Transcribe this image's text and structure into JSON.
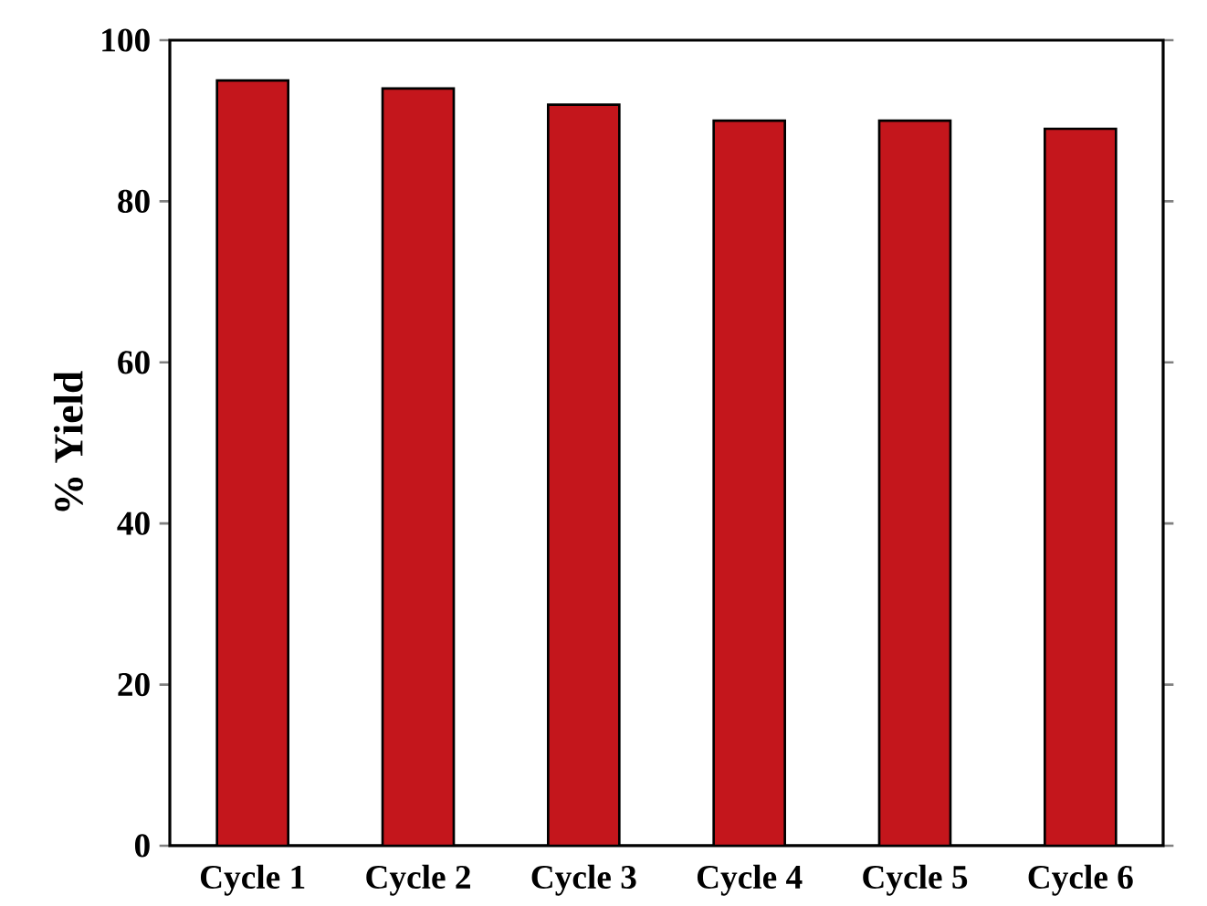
{
  "chart_data": {
    "type": "bar",
    "ylabel": "% Yield",
    "categories": [
      "Cycle 1",
      "Cycle 2",
      "Cycle 3",
      "Cycle 4",
      "Cycle 5",
      "Cycle 6"
    ],
    "values": [
      95,
      94,
      92,
      90,
      90,
      89
    ],
    "color": "#c4161c",
    "ylim": [
      0,
      100
    ],
    "yticks": [
      0,
      20,
      40,
      60,
      80,
      100
    ],
    "grid": false
  }
}
